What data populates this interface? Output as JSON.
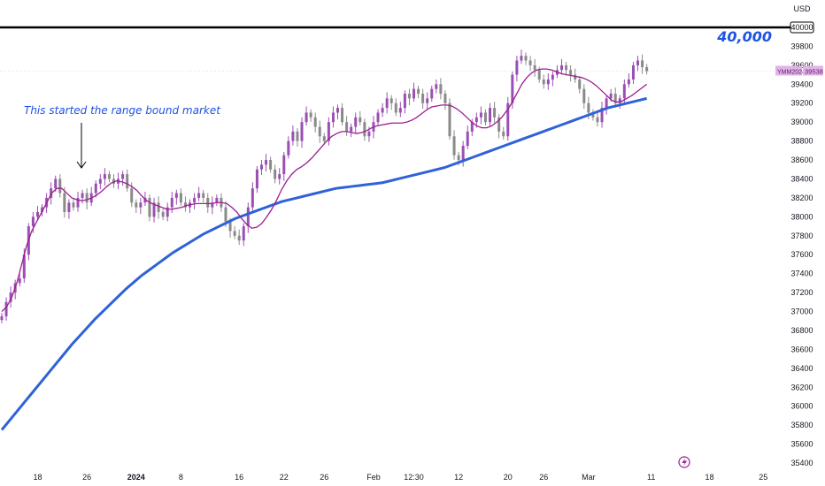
{
  "currency": "USD",
  "chart_data": {
    "type": "candlestick",
    "symbol_label": "YMM2024",
    "last_price": "39538",
    "colors": {
      "up": "#9b4fb3",
      "down": "#8a8a8a",
      "ma_short": "#9c1e93",
      "ma_long": "#2f62d8",
      "annotation": "#1e53e5",
      "level_line": "#000000",
      "price_tag": "#e1b3e6"
    },
    "ylim": [
      35400,
      40100
    ],
    "y_ticks": [
      35400,
      35600,
      35800,
      36000,
      36200,
      36400,
      36600,
      36800,
      37000,
      37200,
      37400,
      37600,
      37800,
      38000,
      38200,
      38400,
      38600,
      38800,
      39000,
      39200,
      39400,
      39600,
      39800,
      40000
    ],
    "x_ticks": [
      {
        "label": "18",
        "bold": false
      },
      {
        "label": "26",
        "bold": false
      },
      {
        "label": "2024",
        "bold": true
      },
      {
        "label": "8",
        "bold": false
      },
      {
        "label": "16",
        "bold": false
      },
      {
        "label": "22",
        "bold": false
      },
      {
        "label": "26",
        "bold": false
      },
      {
        "label": "Feb",
        "bold": false
      },
      {
        "label": "12:30",
        "bold": false
      },
      {
        "label": "12",
        "bold": false
      },
      {
        "label": "20",
        "bold": false
      },
      {
        "label": "26",
        "bold": false
      },
      {
        "label": "Mar",
        "bold": false
      },
      {
        "label": "11",
        "bold": false
      },
      {
        "label": "18",
        "bold": false
      },
      {
        "label": "25",
        "bold": false
      }
    ],
    "x_tick_index": [
      8,
      19,
      30,
      40,
      53,
      63,
      72,
      83,
      92,
      102,
      113,
      121,
      131,
      145,
      158,
      170
    ],
    "close": [
      36950,
      37100,
      37200,
      37300,
      37350,
      37600,
      37900,
      38000,
      38050,
      38100,
      38200,
      38300,
      38400,
      38250,
      38050,
      38150,
      38100,
      38200,
      38250,
      38150,
      38250,
      38350,
      38400,
      38450,
      38400,
      38350,
      38400,
      38450,
      38300,
      38150,
      38100,
      38150,
      38200,
      38000,
      38150,
      38050,
      38000,
      38100,
      38200,
      38250,
      38150,
      38100,
      38150,
      38200,
      38250,
      38200,
      38100,
      38150,
      38200,
      38100,
      37950,
      37850,
      37800,
      37750,
      37900,
      38100,
      38300,
      38500,
      38550,
      38600,
      38500,
      38400,
      38450,
      38650,
      38800,
      38900,
      38800,
      39000,
      39100,
      39050,
      38950,
      38850,
      38800,
      39000,
      39100,
      39150,
      39000,
      38900,
      38950,
      39050,
      39000,
      38850,
      38900,
      39000,
      39100,
      39150,
      39250,
      39200,
      39100,
      39150,
      39300,
      39250,
      39350,
      39300,
      39200,
      39250,
      39350,
      39400,
      39300,
      39200,
      38850,
      38650,
      38600,
      38750,
      38900,
      39000,
      39050,
      39100,
      39000,
      39150,
      39050,
      38900,
      38850,
      39200,
      39500,
      39650,
      39700,
      39650,
      39600,
      39550,
      39450,
      39400,
      39450,
      39500,
      39550,
      39600,
      39550,
      39500,
      39450,
      39350,
      39200,
      39100,
      39050,
      39000,
      39150,
      39250,
      39300,
      39200,
      39250,
      39400,
      39450,
      39600,
      39650,
      39580,
      39538
    ],
    "ma_short": [
      37000,
      37050,
      37150,
      37300,
      37500,
      37700,
      37850,
      37950,
      38050,
      38150,
      38250,
      38300,
      38300,
      38250,
      38200,
      38180,
      38170,
      38180,
      38200,
      38230,
      38270,
      38320,
      38360,
      38380,
      38370,
      38350,
      38320,
      38280,
      38220,
      38170,
      38140,
      38120,
      38100,
      38080,
      38080,
      38090,
      38100,
      38120,
      38130,
      38140,
      38140,
      38140,
      38140,
      38150,
      38150,
      38140,
      38100,
      38050,
      37980,
      37920,
      37880,
      37890,
      37930,
      38000,
      38080,
      38180,
      38290,
      38380,
      38450,
      38500,
      38530,
      38570,
      38620,
      38680,
      38740,
      38800,
      38850,
      38880,
      38900,
      38900,
      38890,
      38880,
      38890,
      38910,
      38940,
      38960,
      38970,
      38980,
      38990,
      38990,
      38990,
      39000,
      39020,
      39050,
      39090,
      39130,
      39160,
      39170,
      39180,
      39180,
      39170,
      39140,
      39100,
      39050,
      39000,
      38960,
      38940,
      38940,
      38960,
      39000,
      39050,
      39120,
      39200,
      39300,
      39400,
      39470,
      39520,
      39550,
      39560,
      39560,
      39550,
      39530,
      39510,
      39500,
      39490,
      39480,
      39470,
      39450,
      39420,
      39380,
      39330,
      39280,
      39230,
      39210,
      39220,
      39250,
      39280,
      39320,
      39360,
      39400
    ],
    "ma_long": [
      35750,
      35850,
      35950,
      36050,
      36150,
      36250,
      36350,
      36450,
      36550,
      36650,
      36740,
      36830,
      36920,
      37000,
      37080,
      37160,
      37240,
      37310,
      37380,
      37440,
      37500,
      37560,
      37620,
      37670,
      37720,
      37770,
      37820,
      37860,
      37900,
      37940,
      37980,
      38010,
      38040,
      38070,
      38100,
      38130,
      38160,
      38180,
      38200,
      38220,
      38240,
      38260,
      38280,
      38300,
      38310,
      38320,
      38330,
      38340,
      38350,
      38360,
      38380,
      38400,
      38420,
      38440,
      38460,
      38480,
      38500,
      38520,
      38550,
      38580,
      38610,
      38640,
      38670,
      38700,
      38730,
      38760,
      38790,
      38820,
      38850,
      38880,
      38910,
      38940,
      38970,
      39000,
      39030,
      39060,
      39090,
      39120,
      39150,
      39170,
      39190,
      39210,
      39230,
      39250
    ],
    "annotation": "This started the range bound market",
    "level": 40000,
    "level_label": "40,000"
  }
}
